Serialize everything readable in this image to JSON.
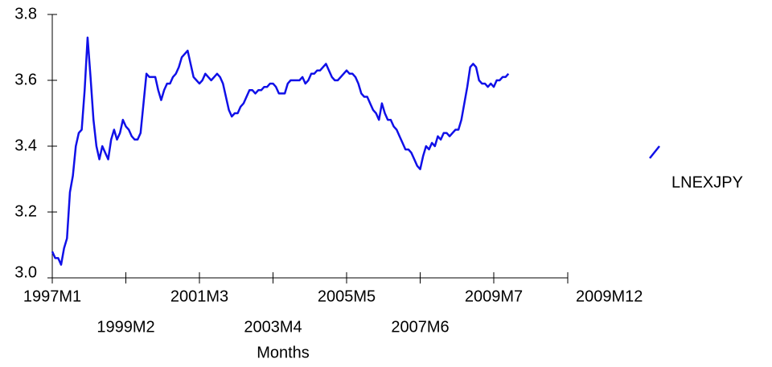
{
  "chart_data": {
    "type": "line",
    "x_label": "Months",
    "categories": [
      "1997M1",
      null,
      null,
      null,
      null,
      null,
      null,
      null,
      null,
      null,
      null,
      null,
      null,
      null,
      null,
      null,
      null,
      null,
      null,
      null,
      null,
      null,
      null,
      null,
      null,
      "1999M2",
      null,
      null,
      null,
      null,
      null,
      null,
      null,
      null,
      null,
      null,
      null,
      null,
      null,
      null,
      null,
      null,
      null,
      null,
      null,
      null,
      null,
      null,
      null,
      null,
      "2001M3",
      null,
      null,
      null,
      null,
      null,
      null,
      null,
      null,
      null,
      null,
      null,
      null,
      null,
      null,
      null,
      null,
      null,
      null,
      null,
      null,
      null,
      null,
      null,
      null,
      "2003M4",
      null,
      null,
      null,
      null,
      null,
      null,
      null,
      null,
      null,
      null,
      null,
      null,
      null,
      null,
      null,
      null,
      null,
      null,
      null,
      null,
      null,
      null,
      null,
      null,
      "2005M5",
      null,
      null,
      null,
      null,
      null,
      null,
      null,
      null,
      null,
      null,
      null,
      null,
      null,
      null,
      null,
      null,
      null,
      null,
      null,
      null,
      null,
      null,
      null,
      null,
      "2007M6",
      null,
      null,
      null,
      null,
      null,
      null,
      null,
      null,
      null,
      null,
      null,
      null,
      null,
      null,
      null,
      null,
      null,
      null,
      null,
      null,
      null,
      null,
      null,
      null,
      "2009M7",
      null,
      null,
      null,
      null,
      "2009M12"
    ],
    "series": [
      {
        "name": "LNEXJPY",
        "color": "#1010e8",
        "values": [
          3.08,
          3.06,
          3.06,
          3.04,
          3.09,
          3.12,
          3.26,
          3.31,
          3.4,
          3.44,
          3.45,
          3.57,
          3.73,
          3.61,
          3.48,
          3.4,
          3.36,
          3.4,
          3.38,
          3.36,
          3.42,
          3.45,
          3.42,
          3.44,
          3.48,
          3.46,
          3.45,
          3.43,
          3.42,
          3.42,
          3.44,
          3.53,
          3.62,
          3.61,
          3.61,
          3.61,
          3.57,
          3.54,
          3.57,
          3.59,
          3.59,
          3.61,
          3.62,
          3.64,
          3.67,
          3.68,
          3.69,
          3.65,
          3.61,
          3.6,
          3.59,
          3.6,
          3.62,
          3.61,
          3.6,
          3.61,
          3.62,
          3.61,
          3.59,
          3.55,
          3.51,
          3.49,
          3.5,
          3.5,
          3.52,
          3.53,
          3.55,
          3.57,
          3.57,
          3.56,
          3.57,
          3.57,
          3.58,
          3.58,
          3.59,
          3.59,
          3.58,
          3.56,
          3.56,
          3.56,
          3.59,
          3.6,
          3.6,
          3.6,
          3.6,
          3.61,
          3.59,
          3.6,
          3.62,
          3.62,
          3.63,
          3.63,
          3.64,
          3.65,
          3.63,
          3.61,
          3.6,
          3.6,
          3.61,
          3.62,
          3.63,
          3.62,
          3.62,
          3.61,
          3.59,
          3.56,
          3.55,
          3.55,
          3.53,
          3.51,
          3.5,
          3.48,
          3.53,
          3.5,
          3.48,
          3.48,
          3.46,
          3.45,
          3.43,
          3.41,
          3.39,
          3.39,
          3.38,
          3.36,
          3.34,
          3.33,
          3.37,
          3.4,
          3.39,
          3.41,
          3.4,
          3.43,
          3.42,
          3.44,
          3.44,
          3.43,
          3.44,
          3.45,
          3.45,
          3.48,
          3.53,
          3.58,
          3.64,
          3.65,
          3.64,
          3.6,
          3.59,
          3.59,
          3.58,
          3.59,
          3.58,
          3.6,
          3.6,
          3.61,
          3.61,
          3.62
        ]
      }
    ],
    "ylim": [
      3.0,
      3.8
    ],
    "yticks": [
      {
        "value": 3,
        "label": "3.0"
      },
      3.2,
      3.4,
      3.6,
      3.8
    ],
    "grid": false
  }
}
